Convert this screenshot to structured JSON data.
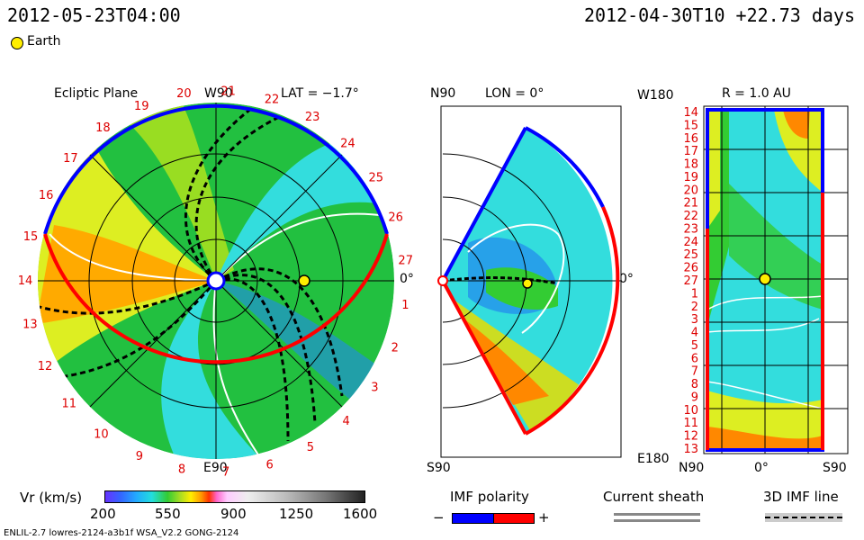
{
  "header": {
    "datetime": "2012-05-23T04:00",
    "run_info": "2012-04-30T10 +22.73 days",
    "earth_legend": "Earth"
  },
  "panels": {
    "ecliptic": {
      "title": "Ecliptic Plane",
      "north": "W90",
      "south": "E90",
      "right": "0°",
      "lat": "LAT = −1.7°",
      "carrington_labels": [
        "19",
        "20",
        "21",
        "22",
        "23",
        "24",
        "25",
        "26",
        "27",
        "1",
        "2",
        "3",
        "4",
        "5",
        "6",
        "7",
        "8",
        "9",
        "10",
        "11",
        "12",
        "13",
        "14",
        "15",
        "16",
        "17",
        "18"
      ]
    },
    "meridional": {
      "top": "N90",
      "bottom": "S90",
      "right": "0°",
      "lon": "LON = 0°"
    },
    "map": {
      "title": "R = 1.0 AU",
      "corner_top": "W180",
      "corner_bottom": "E180",
      "x_labels": [
        "N90",
        "0°",
        "S90"
      ],
      "y_labels": [
        "14",
        "15",
        "16",
        "17",
        "18",
        "19",
        "20",
        "21",
        "22",
        "23",
        "24",
        "25",
        "26",
        "27",
        "1",
        "2",
        "3",
        "4",
        "5",
        "6",
        "7",
        "8",
        "9",
        "10",
        "11",
        "12",
        "13"
      ]
    }
  },
  "colorbar": {
    "label": "Vr (km/s)",
    "ticks": [
      "200",
      "550",
      "900",
      "1250",
      "1600"
    ]
  },
  "legends": {
    "imf_title": "IMF polarity",
    "imf_minus": "−",
    "imf_plus": "+",
    "sheath_title": "Current sheath",
    "line_title": "3D IMF line"
  },
  "footer": {
    "left": "ENLIL-2.7 lowres-2124-a3b1f WSA_V2.2 GONG-2124"
  },
  "colors": {
    "polarity_negative": "#0000ff",
    "polarity_positive": "#ff0000",
    "carrington_label": "#dd0000",
    "earth": "#ffee00"
  },
  "chart_data": {
    "type": "heatmap",
    "quantity": "Vr",
    "unit": "km/s",
    "scale_range": [
      200,
      1600
    ],
    "colorbar_ticks": [
      200,
      550,
      900,
      1250,
      1600
    ],
    "earth_position": {
      "lat": -1.7,
      "lon": 0,
      "r_au": 1.0
    }
  }
}
